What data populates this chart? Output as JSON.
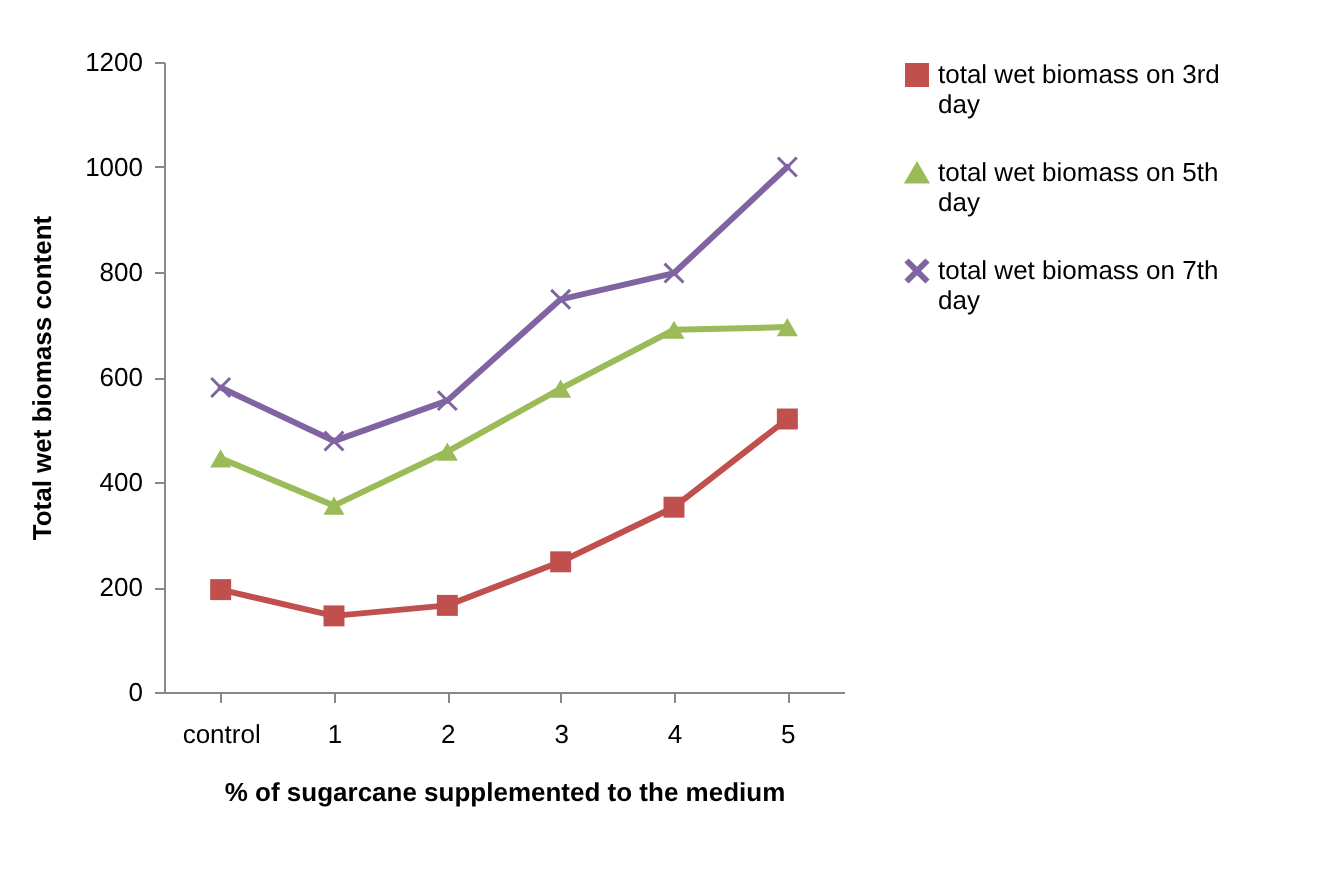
{
  "chart_data": {
    "type": "line",
    "xlabel": "% of sugarcane  supplemented to the medium",
    "ylabel": "Total wet biomass content",
    "categories": [
      "control",
      "1",
      "2",
      "3",
      "4",
      "5"
    ],
    "series": [
      {
        "name": "total wet biomass on 3rd day",
        "color": "#c0504d",
        "marker": "square",
        "values": [
          195,
          145,
          165,
          248,
          352,
          520
        ]
      },
      {
        "name": "total wet biomass on 5th day",
        "color": "#9bbb59",
        "marker": "triangle",
        "values": [
          445,
          355,
          458,
          578,
          690,
          695
        ]
      },
      {
        "name": "total wet biomass on 7th day",
        "color": "#8064a2",
        "marker": "cross",
        "values": [
          580,
          478,
          555,
          748,
          798,
          1000
        ]
      }
    ],
    "ylim": [
      0,
      1200
    ],
    "yticks": [
      0,
      200,
      400,
      600,
      800,
      1000,
      1200
    ],
    "grid": false,
    "legend": "right"
  }
}
